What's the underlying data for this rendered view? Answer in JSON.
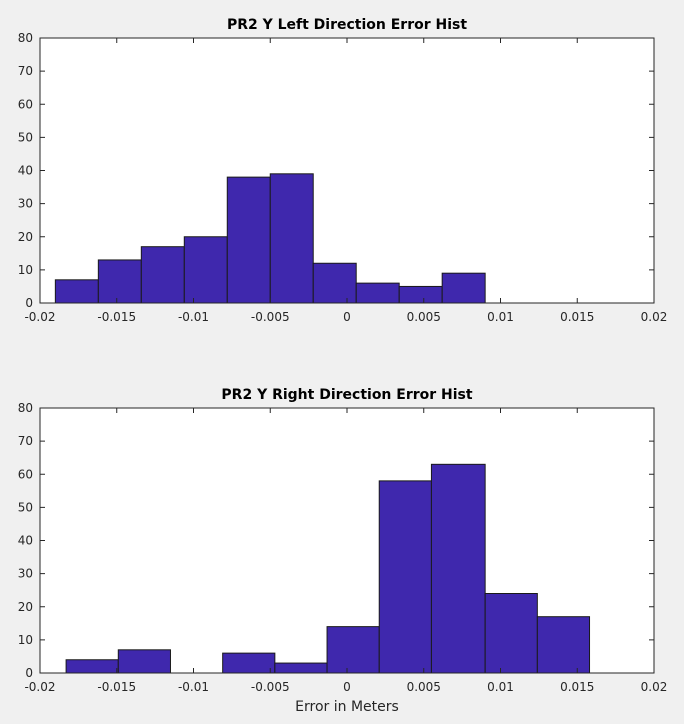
{
  "colors": {
    "bar_fill": "#3f28ad",
    "bar_edge": "#1a1a1a",
    "axes_bg": "#ffffff",
    "figure_bg": "#f0f0f0",
    "axis": "#262626"
  },
  "chart_data": [
    {
      "type": "bar",
      "title": "PR2 Y Left Direction Error Hist",
      "xlabel": "",
      "ylabel": "",
      "xlim": [
        -0.02,
        0.02
      ],
      "ylim": [
        0,
        80
      ],
      "grid": false,
      "xticks": [
        "-0.02",
        "-0.015",
        "-0.01",
        "-0.005",
        "0",
        "0.005",
        "0.01",
        "0.015",
        "0.02"
      ],
      "yticks": [
        "0",
        "10",
        "20",
        "30",
        "40",
        "50",
        "60",
        "70",
        "80"
      ],
      "bins": [
        {
          "x0": -0.019,
          "x1": -0.0162,
          "count": 7
        },
        {
          "x0": -0.0162,
          "x1": -0.0134,
          "count": 13
        },
        {
          "x0": -0.0134,
          "x1": -0.0106,
          "count": 17
        },
        {
          "x0": -0.0106,
          "x1": -0.0078,
          "count": 20
        },
        {
          "x0": -0.0078,
          "x1": -0.005,
          "count": 38
        },
        {
          "x0": -0.005,
          "x1": -0.0022,
          "count": 39
        },
        {
          "x0": -0.0022,
          "x1": 0.0006,
          "count": 12
        },
        {
          "x0": 0.0006,
          "x1": 0.0034,
          "count": 6
        },
        {
          "x0": 0.0034,
          "x1": 0.0062,
          "count": 5
        },
        {
          "x0": 0.0062,
          "x1": 0.009,
          "count": 9
        }
      ]
    },
    {
      "type": "bar",
      "title": "PR2 Y Right Direction Error Hist",
      "xlabel": "Error in Meters",
      "ylabel": "",
      "xlim": [
        -0.02,
        0.02
      ],
      "ylim": [
        0,
        80
      ],
      "grid": false,
      "xticks": [
        "-0.02",
        "-0.015",
        "-0.01",
        "-0.005",
        "0",
        "0.005",
        "0.01",
        "0.015",
        "0.02"
      ],
      "yticks": [
        "0",
        "10",
        "20",
        "30",
        "40",
        "50",
        "60",
        "70",
        "80"
      ],
      "bins": [
        {
          "x0": -0.0183,
          "x1": -0.0149,
          "count": 4
        },
        {
          "x0": -0.0149,
          "x1": -0.0115,
          "count": 7
        },
        {
          "x0": -0.0115,
          "x1": -0.0081,
          "count": 0
        },
        {
          "x0": -0.0081,
          "x1": -0.0047,
          "count": 6
        },
        {
          "x0": -0.0047,
          "x1": -0.0013,
          "count": 3
        },
        {
          "x0": -0.0013,
          "x1": 0.0021,
          "count": 14
        },
        {
          "x0": 0.0021,
          "x1": 0.0055,
          "count": 58
        },
        {
          "x0": 0.0055,
          "x1": 0.009,
          "count": 63
        },
        {
          "x0": 0.009,
          "x1": 0.0124,
          "count": 24
        },
        {
          "x0": 0.0124,
          "x1": 0.0158,
          "count": 17
        }
      ]
    }
  ]
}
